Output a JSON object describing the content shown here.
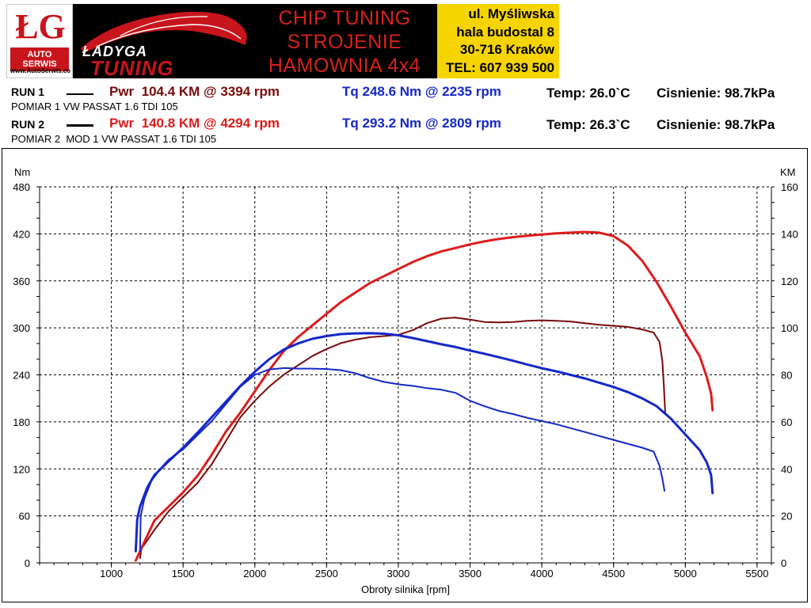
{
  "header": {
    "logo_letters": "ŁG",
    "logo_sub": "AUTO SERWIS",
    "logo_url": "www.AutoSerwis.co",
    "brand_top": "ŁADYGA",
    "brand_bottom": "TUNING",
    "title_lines": [
      "CHIP TUNING",
      "STROJENIE",
      "HAMOWNIA 4x4"
    ],
    "address_lines": [
      "ul. Myśliwska",
      "hala budostal 8",
      "30-716 Kraków",
      "TEL: 607 939 500"
    ]
  },
  "runs": [
    {
      "label": "RUN 1",
      "pwr": "Pwr  104.4 KM @ 3394 rpm",
      "tq": "Tq 248.6 Nm @ 2235 rpm",
      "temp": "Temp: 26.0`C",
      "pressure": "Cisnienie: 98.7kPa",
      "description": "POMIAR 1 VW PASSAT 1.6 TDI 105"
    },
    {
      "label": "RUN 2",
      "pwr": "Pwr  140.8 KM @ 4294 rpm",
      "tq": "Tq 293.2 Nm @ 2809 rpm",
      "temp": "Temp: 26.3`C",
      "pressure": "Cisnienie: 98.7kPa",
      "description": "POMIAR 2  MOD 1 VW PASSAT 1.6 TDI 105"
    }
  ],
  "colors": {
    "run1_power": "#7a0a0a",
    "run2_power": "#dd1c1c",
    "torque": "#1428c8",
    "pwr_text_run1": "#7a0a0a",
    "pwr_text_run2": "#dd1c1c",
    "tq_text": "#1428c8",
    "banner_red": "#d5221b",
    "banner_yellow": "#f5d400"
  },
  "chart_data": {
    "type": "line",
    "xlabel": "Obroty silnika [rpm]",
    "ylabel_left": "Nm",
    "ylabel_right": "KM",
    "xlim": [
      500,
      5600
    ],
    "ylim_left": [
      0,
      480
    ],
    "ylim_right": [
      0,
      160
    ],
    "x_ticks": [
      1000,
      1500,
      2000,
      2500,
      3000,
      3500,
      4000,
      4500,
      5000,
      5500
    ],
    "y_ticks_left": [
      0,
      60,
      120,
      180,
      240,
      300,
      360,
      420,
      480
    ],
    "y_ticks_right": [
      0,
      20,
      40,
      60,
      80,
      100,
      120,
      140,
      160
    ],
    "grid": true,
    "series": [
      {
        "name": "RUN 1 Pwr",
        "axis": "right",
        "color": "#7a0a0a",
        "x": [
          1200,
          1210,
          1300,
          1400,
          1500,
          1600,
          1700,
          1800,
          1900,
          2000,
          2100,
          2200,
          2300,
          2400,
          2500,
          2600,
          2700,
          2800,
          2900,
          3000,
          3100,
          3200,
          3300,
          3394,
          3500,
          3600,
          3700,
          3800,
          3900,
          4000,
          4100,
          4200,
          4300,
          4400,
          4500,
          4600,
          4700,
          4780,
          4820,
          4840,
          4850,
          4860
        ],
        "y": [
          2,
          6,
          14,
          22,
          28,
          34,
          42,
          52,
          62,
          69,
          75,
          80,
          84,
          88,
          91,
          93.5,
          95,
          96,
          96.5,
          97,
          99,
          102,
          103.9,
          104.4,
          103.5,
          102.5,
          102.3,
          102.5,
          103,
          103.2,
          103,
          102.7,
          102,
          101.3,
          100.9,
          100.4,
          99.3,
          98,
          94,
          86,
          76,
          64
        ]
      },
      {
        "name": "RUN 2 Pwr",
        "axis": "right",
        "color": "#dd1c1c",
        "x": [
          1170,
          1200,
          1300,
          1400,
          1500,
          1600,
          1700,
          1800,
          1900,
          2000,
          2100,
          2200,
          2300,
          2400,
          2500,
          2600,
          2700,
          2800,
          2900,
          3000,
          3100,
          3200,
          3300,
          3400,
          3500,
          3600,
          3700,
          3800,
          3900,
          4000,
          4100,
          4200,
          4294,
          4400,
          4500,
          4600,
          4700,
          4800,
          4900,
          5000,
          5100,
          5150,
          5180,
          5190
        ],
        "y": [
          1,
          5,
          18,
          24,
          30,
          37,
          46,
          56,
          64,
          73,
          82,
          90,
          96,
          101,
          106,
          111,
          115,
          119,
          122,
          125,
          128,
          130.5,
          132.5,
          134,
          135.5,
          136.8,
          137.8,
          138.6,
          139.2,
          139.7,
          140.2,
          140.5,
          140.8,
          140.5,
          139,
          135,
          128.5,
          119.5,
          109,
          98,
          88,
          79,
          72,
          65
        ]
      },
      {
        "name": "RUN 1 Tq",
        "axis": "left",
        "color": "#1428c8",
        "x": [
          1200,
          1205,
          1230,
          1280,
          1350,
          1400,
          1500,
          1600,
          1700,
          1800,
          1900,
          2000,
          2100,
          2200,
          2235,
          2300,
          2400,
          2500,
          2600,
          2700,
          2800,
          2900,
          3000,
          3100,
          3200,
          3300,
          3400,
          3500,
          3600,
          3700,
          3800,
          3900,
          4000,
          4100,
          4200,
          4300,
          4400,
          4500,
          4600,
          4700,
          4780,
          4820,
          4840,
          4855
        ],
        "y": [
          15,
          60,
          82,
          105,
          122,
          132,
          145,
          163,
          181,
          203,
          225,
          240,
          247,
          248.6,
          248.6,
          248,
          248,
          247.5,
          246,
          242,
          236,
          231,
          228,
          226,
          223,
          221,
          217,
          207,
          200,
          194,
          190,
          185,
          181,
          177,
          172,
          167,
          162,
          157,
          152,
          147,
          142,
          124,
          108,
          92
        ]
      },
      {
        "name": "RUN 2 Tq",
        "axis": "left",
        "color": "#1428c8",
        "x": [
          1170,
          1180,
          1200,
          1250,
          1300,
          1400,
          1500,
          1600,
          1700,
          1800,
          1900,
          2000,
          2100,
          2200,
          2300,
          2400,
          2500,
          2600,
          2700,
          2809,
          2900,
          3000,
          3100,
          3200,
          3300,
          3400,
          3500,
          3600,
          3700,
          3800,
          3900,
          4000,
          4100,
          4200,
          4300,
          4400,
          4500,
          4600,
          4700,
          4800,
          4900,
          5000,
          5100,
          5150,
          5180,
          5190
        ],
        "y": [
          15,
          55,
          72,
          96,
          112,
          130,
          147,
          166,
          186,
          206,
          226,
          244,
          260,
          272,
          280,
          286,
          289.5,
          292,
          293,
          293.2,
          292.5,
          290.5,
          287,
          283,
          279,
          275.5,
          271,
          267,
          262.5,
          258,
          253,
          248.5,
          244.5,
          240,
          235.5,
          230,
          224.5,
          218,
          210,
          200,
          184,
          164,
          144,
          128,
          112,
          89
        ]
      }
    ]
  }
}
